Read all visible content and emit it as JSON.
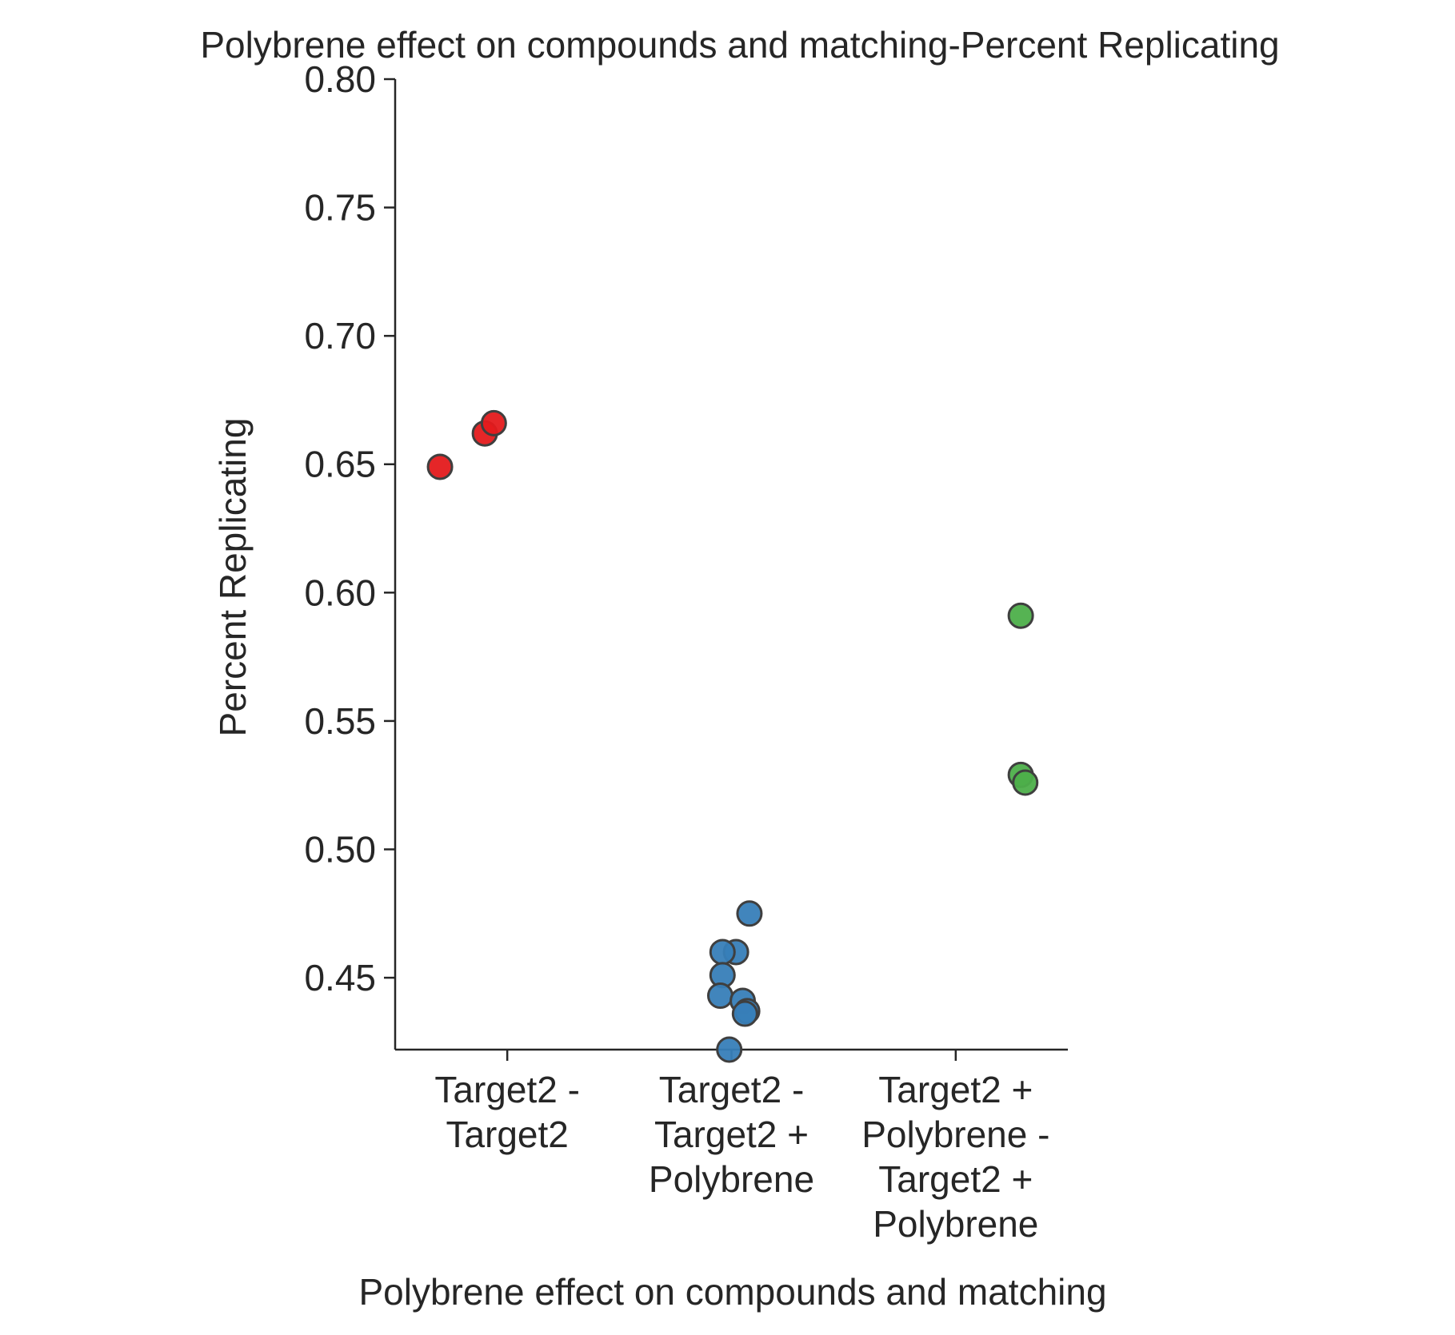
{
  "chart_data": {
    "type": "scatter",
    "subtype": "strip",
    "title": "Polybrene effect on compounds and matching-Percent Replicating",
    "xlabel": "Polybrene effect on compounds and matching",
    "ylabel": "Percent Replicating",
    "categories": [
      [
        "Target2 -",
        "Target2"
      ],
      [
        "Target2 -",
        "Target2 +",
        "Polybrene"
      ],
      [
        "Target2 +",
        "Polybrene -",
        "Target2 +",
        "Polybrene"
      ]
    ],
    "ylim": [
      0.422,
      0.8
    ],
    "yticks": [
      "0.45",
      "0.50",
      "0.55",
      "0.60",
      "0.65",
      "0.70",
      "0.75",
      "0.80"
    ],
    "grid": false,
    "series": [
      {
        "category_index": 0,
        "color": "#e41a1c",
        "values": [
          0.649,
          0.662,
          0.666
        ]
      },
      {
        "category_index": 1,
        "color": "#377eb8",
        "values": [
          0.475,
          0.46,
          0.46,
          0.451,
          0.443,
          0.441,
          0.437,
          0.436,
          0.422
        ]
      },
      {
        "category_index": 2,
        "color": "#4daf4a",
        "values": [
          0.591,
          0.529,
          0.526
        ]
      }
    ],
    "colors": {
      "axis": "#262626",
      "marker_edge": "#3f3f3f"
    }
  }
}
